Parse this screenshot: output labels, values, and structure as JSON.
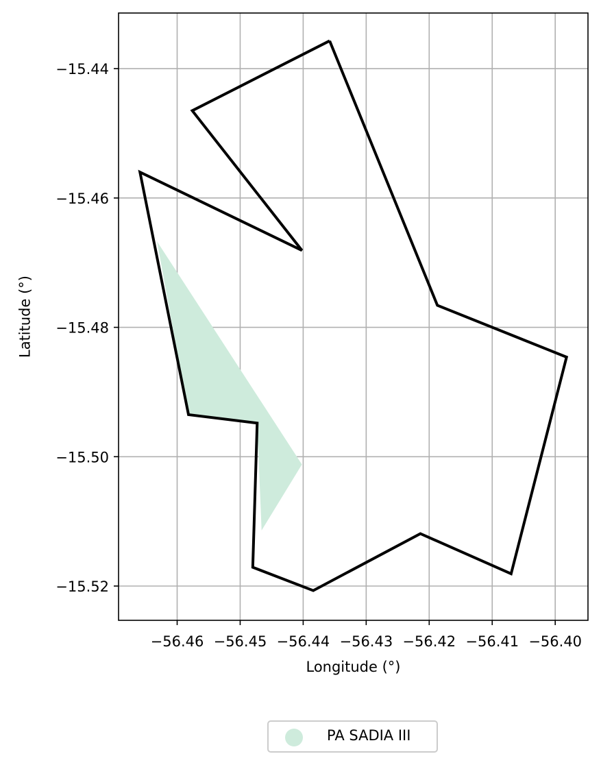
{
  "chart_data": {
    "type": "map",
    "xlabel": "Longitude (°)",
    "ylabel": "Latitude (°)",
    "xlim": [
      -56.4693,
      -56.3948
    ],
    "ylim": [
      -15.5253,
      -15.4314
    ],
    "xticks": [
      -56.46,
      -56.45,
      -56.44,
      -56.43,
      -56.42,
      -56.41,
      -56.4
    ],
    "xtick_labels": [
      "−56.46",
      "−56.45",
      "−56.44",
      "−56.43",
      "−56.42",
      "−56.41",
      "−56.40"
    ],
    "yticks": [
      -15.44,
      -15.46,
      -15.48,
      -15.5,
      -15.52
    ],
    "ytick_labels": [
      "−15.44",
      "−15.46",
      "−15.48",
      "−15.50",
      "−15.52"
    ],
    "grid": true,
    "legend": {
      "placement": "below",
      "entries": [
        {
          "label": "PA SADIA III",
          "color": "#ceebdc"
        }
      ]
    },
    "outline": {
      "color": "#000000",
      "coordinates": [
        [
          -56.4358,
          -15.4357
        ],
        [
          -56.4576,
          -15.4465
        ],
        [
          -56.4402,
          -15.4681
        ],
        [
          -56.4659,
          -15.456
        ],
        [
          -56.4582,
          -15.4935
        ],
        [
          -56.4473,
          -15.4948
        ],
        [
          -56.448,
          -15.5171
        ],
        [
          -56.4384,
          -15.5207
        ],
        [
          -56.4214,
          -15.5119
        ],
        [
          -56.407,
          -15.5181
        ],
        [
          -56.3982,
          -15.4846
        ],
        [
          -56.4187,
          -15.4766
        ],
        [
          -56.4358,
          -15.4357
        ]
      ]
    },
    "filled_area": {
      "label": "PA SADIA III",
      "color": "#ceebdc",
      "coordinates": [
        [
          -56.4632,
          -15.4667
        ],
        [
          -56.4402,
          -15.5012
        ],
        [
          -56.4466,
          -15.5114
        ],
        [
          -56.4473,
          -15.4948
        ],
        [
          -56.4582,
          -15.4935
        ]
      ]
    }
  }
}
